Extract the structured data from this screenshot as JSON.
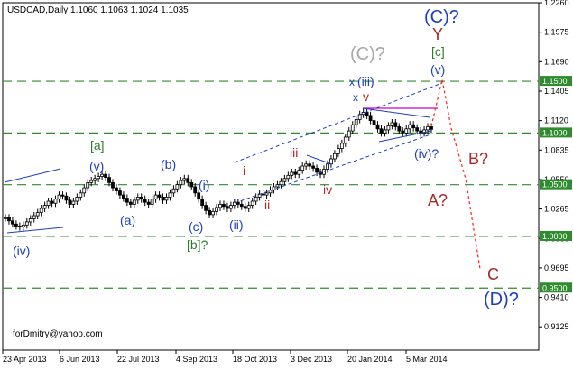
{
  "window": {
    "symbol_line": "USDCAD,Daily  1.1060 1.1063 1.1024 1.1035",
    "footer_credit": "forDmitry@yahoo.com"
  },
  "colors": {
    "background": "#ffffff",
    "candles": "#000000",
    "level_lines": "#2e8b2e",
    "level_label_bg": "#2e8b2e",
    "level_label_text": "#ffffff",
    "wave_blue": "#1f3fbf",
    "wave_red": "#a52a2a",
    "wave_green": "#2e7d2e",
    "wave_gray": "#a8a8a8",
    "channel_line": "#1f3fbf",
    "triangle_line": "#cc00cc",
    "forecast_path": "#ff2020",
    "axis_text": "#000000"
  },
  "chart_data": {
    "type": "candlestick",
    "title": "USDCAD,Daily  1.1060 1.1063 1.1024 1.1035",
    "ylim": [
      0.89,
      1.226
    ],
    "y_ticks": [
      "1.2260",
      "1.1975",
      "1.1690",
      "1.1405",
      "1.1120",
      "1.0835",
      "1.0550",
      "1.0265",
      "0.9980",
      "0.9695",
      "0.9410",
      "0.9125"
    ],
    "x_ticks": [
      "23 Apr 2013",
      "6 Jun 2013",
      "22 Jul 2013",
      "4 Sep 2013",
      "18 Oct 2013",
      "3 Dec 2013",
      "20 Jan 2014",
      "5 Mar 2014"
    ],
    "levels": [
      "1.1500",
      "1.1000",
      "1.0500",
      "1.0000",
      "0.9500"
    ],
    "highlighted_levels": [
      "1.1500",
      "1.1000",
      "1.0500",
      "1.0000",
      "0.9500"
    ],
    "series": [
      {
        "name": "USDCAD",
        "close": [
          1.018,
          1.015,
          1.012,
          1.01,
          1.009,
          1.011,
          1.014,
          1.017,
          1.02,
          1.023,
          1.027,
          1.03,
          1.034,
          1.032,
          1.036,
          1.04,
          1.039,
          1.035,
          1.031,
          1.034,
          1.038,
          1.042,
          1.047,
          1.052,
          1.054,
          1.056,
          1.058,
          1.06,
          1.057,
          1.052,
          1.047,
          1.044,
          1.04,
          1.037,
          1.033,
          1.031,
          1.035,
          1.038,
          1.036,
          1.033,
          1.031,
          1.036,
          1.04,
          1.038,
          1.035,
          1.038,
          1.042,
          1.046,
          1.05,
          1.054,
          1.056,
          1.052,
          1.048,
          1.042,
          1.036,
          1.03,
          1.025,
          1.021,
          1.024,
          1.028,
          1.031,
          1.029,
          1.027,
          1.03,
          1.033,
          1.031,
          1.029,
          1.027,
          1.03,
          1.034,
          1.038,
          1.041,
          1.04,
          1.042,
          1.045,
          1.048,
          1.05,
          1.053,
          1.056,
          1.059,
          1.062,
          1.06,
          1.064,
          1.068,
          1.07,
          1.068,
          1.066,
          1.062,
          1.06,
          1.065,
          1.07,
          1.075,
          1.08,
          1.085,
          1.09,
          1.096,
          1.102,
          1.108,
          1.113,
          1.118,
          1.12,
          1.117,
          1.112,
          1.108,
          1.104,
          1.1,
          1.103,
          1.107,
          1.11,
          1.106,
          1.102,
          1.1,
          1.104,
          1.108,
          1.105,
          1.102,
          1.1,
          1.103,
          1.106,
          1.1035
        ]
      }
    ],
    "annotations": {
      "blue": [
        "(iv)",
        "[a] (v)",
        "(a)",
        "(b)",
        "(c)",
        "(i)",
        "(ii)",
        "(iii)",
        "(iv)?",
        "(v)",
        "(C)?",
        "(D)?",
        "x",
        "x"
      ],
      "red": [
        "i",
        "ii",
        "iii",
        "iv",
        "v",
        "Y",
        "A?",
        "B?",
        "C"
      ],
      "green": [
        "[a]",
        "[b]?",
        "[c]"
      ],
      "gray": [
        "(C)?"
      ]
    }
  },
  "labels": {
    "wave_iv_low": "(iv)",
    "wave_a_box": "[a]",
    "wave_v_mid": "(v)",
    "wave_a": "(a)",
    "wave_b": "(b)",
    "wave_c": "(c)",
    "wave_b_box": "[b]?",
    "wave_i_blue": "(i)",
    "wave_ii_blue": "(ii)",
    "wave_i_red": "i",
    "wave_ii_red": "ii",
    "wave_iii_red": "iii",
    "wave_iv_red": "iv",
    "wave_v_red": "v",
    "wave_x1": "x",
    "wave_x2": "x",
    "wave_iii_blue": "(iii)",
    "wave_C_gray": "(C)?",
    "wave_iv_q": "(iv)?",
    "wave_v_top": "(v)",
    "wave_c_box": "[c]",
    "wave_Y": "Y",
    "wave_C_top": "(C)?",
    "wave_B_q": "B?",
    "wave_A_q": "A?",
    "wave_C_low": "C",
    "wave_D_q": "(D)?"
  }
}
